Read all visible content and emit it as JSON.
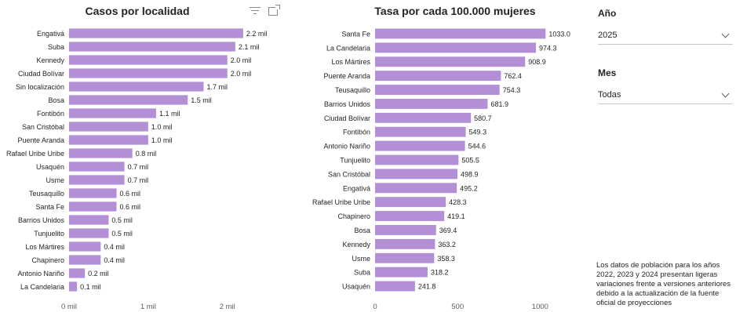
{
  "colors": {
    "bar": "#b38fd6",
    "axis_text": "#605e5c",
    "label_text": "#252423",
    "grid": "#e1dfdd"
  },
  "slicers": {
    "anio": {
      "title": "Año",
      "value": "2025"
    },
    "mes": {
      "title": "Mes",
      "value": "Todas"
    }
  },
  "note": "Los datos de población para los años 2022, 2023 y 2024 presentan ligeras variaciones frente a versiones anteriores debido a la actualización de la fuente oficial de proyecciones",
  "chart_data": [
    {
      "type": "bar",
      "orientation": "horizontal",
      "title": "Casos por localidad",
      "categories": [
        "Engativá",
        "Suba",
        "Kennedy",
        "Ciudad Bolívar",
        "Sin localización",
        "Bosa",
        "Fontibón",
        "San Cristóbal",
        "Puente Aranda",
        "Rafael Uribe Uribe",
        "Usaquén",
        "Usme",
        "Teusaquillo",
        "Santa Fe",
        "Barrios Unidos",
        "Tunjuelito",
        "Los Mártires",
        "Chapinero",
        "Antonio Nariño",
        "La Candelaria"
      ],
      "values": [
        2.2,
        2.1,
        2.0,
        2.0,
        1.7,
        1.5,
        1.1,
        1.0,
        1.0,
        0.8,
        0.7,
        0.7,
        0.6,
        0.6,
        0.5,
        0.5,
        0.4,
        0.4,
        0.2,
        0.1
      ],
      "data_labels": [
        "2.2 mil",
        "2.1 mil",
        "2.0 mil",
        "2.0 mil",
        "1.7 mil",
        "1.5 mil",
        "1.1 mil",
        "1.0 mil",
        "1.0 mil",
        "0.8 mil",
        "0.7 mil",
        "0.7 mil",
        "0.6 mil",
        "0.6 mil",
        "0.5 mil",
        "0.5 mil",
        "0.4 mil",
        "0.4 mil",
        "0.2 mil",
        "0.1 mil"
      ],
      "xlim": [
        0,
        2.3
      ],
      "ticks": [
        0,
        1,
        2
      ],
      "tick_labels": [
        "0 mil",
        "1 mil",
        "2 mil"
      ],
      "grid": false
    },
    {
      "type": "bar",
      "orientation": "horizontal",
      "title": "Tasa por cada 100.000 mujeres",
      "categories": [
        "Santa Fe",
        "La Candelaria",
        "Los Mártires",
        "Puente Aranda",
        "Teusaquillo",
        "Barrios Unidos",
        "Ciudad Bolívar",
        "Fontibón",
        "Antonio Nariño",
        "Tunjuelito",
        "San Cristóbal",
        "Engativá",
        "Rafael Uribe Uribe",
        "Chapinero",
        "Bosa",
        "Kennedy",
        "Usme",
        "Suba",
        "Usaquén"
      ],
      "values": [
        1033.0,
        974.3,
        908.9,
        762.4,
        754.3,
        681.9,
        580.7,
        549.3,
        544.6,
        505.5,
        498.9,
        495.2,
        428.3,
        419.1,
        369.4,
        363.2,
        358.3,
        318.2,
        241.8
      ],
      "data_labels": [
        "1033.0",
        "974.3",
        "908.9",
        "762.4",
        "754.3",
        "681.9",
        "580.7",
        "549.3",
        "544.6",
        "505.5",
        "498.9",
        "495.2",
        "428.3",
        "419.1",
        "369.4",
        "363.2",
        "358.3",
        "318.2",
        "241.8"
      ],
      "xlim": [
        0,
        1060
      ],
      "ticks": [
        0,
        500,
        1000
      ],
      "tick_labels": [
        "0",
        "500",
        "1000"
      ],
      "grid": false
    }
  ]
}
